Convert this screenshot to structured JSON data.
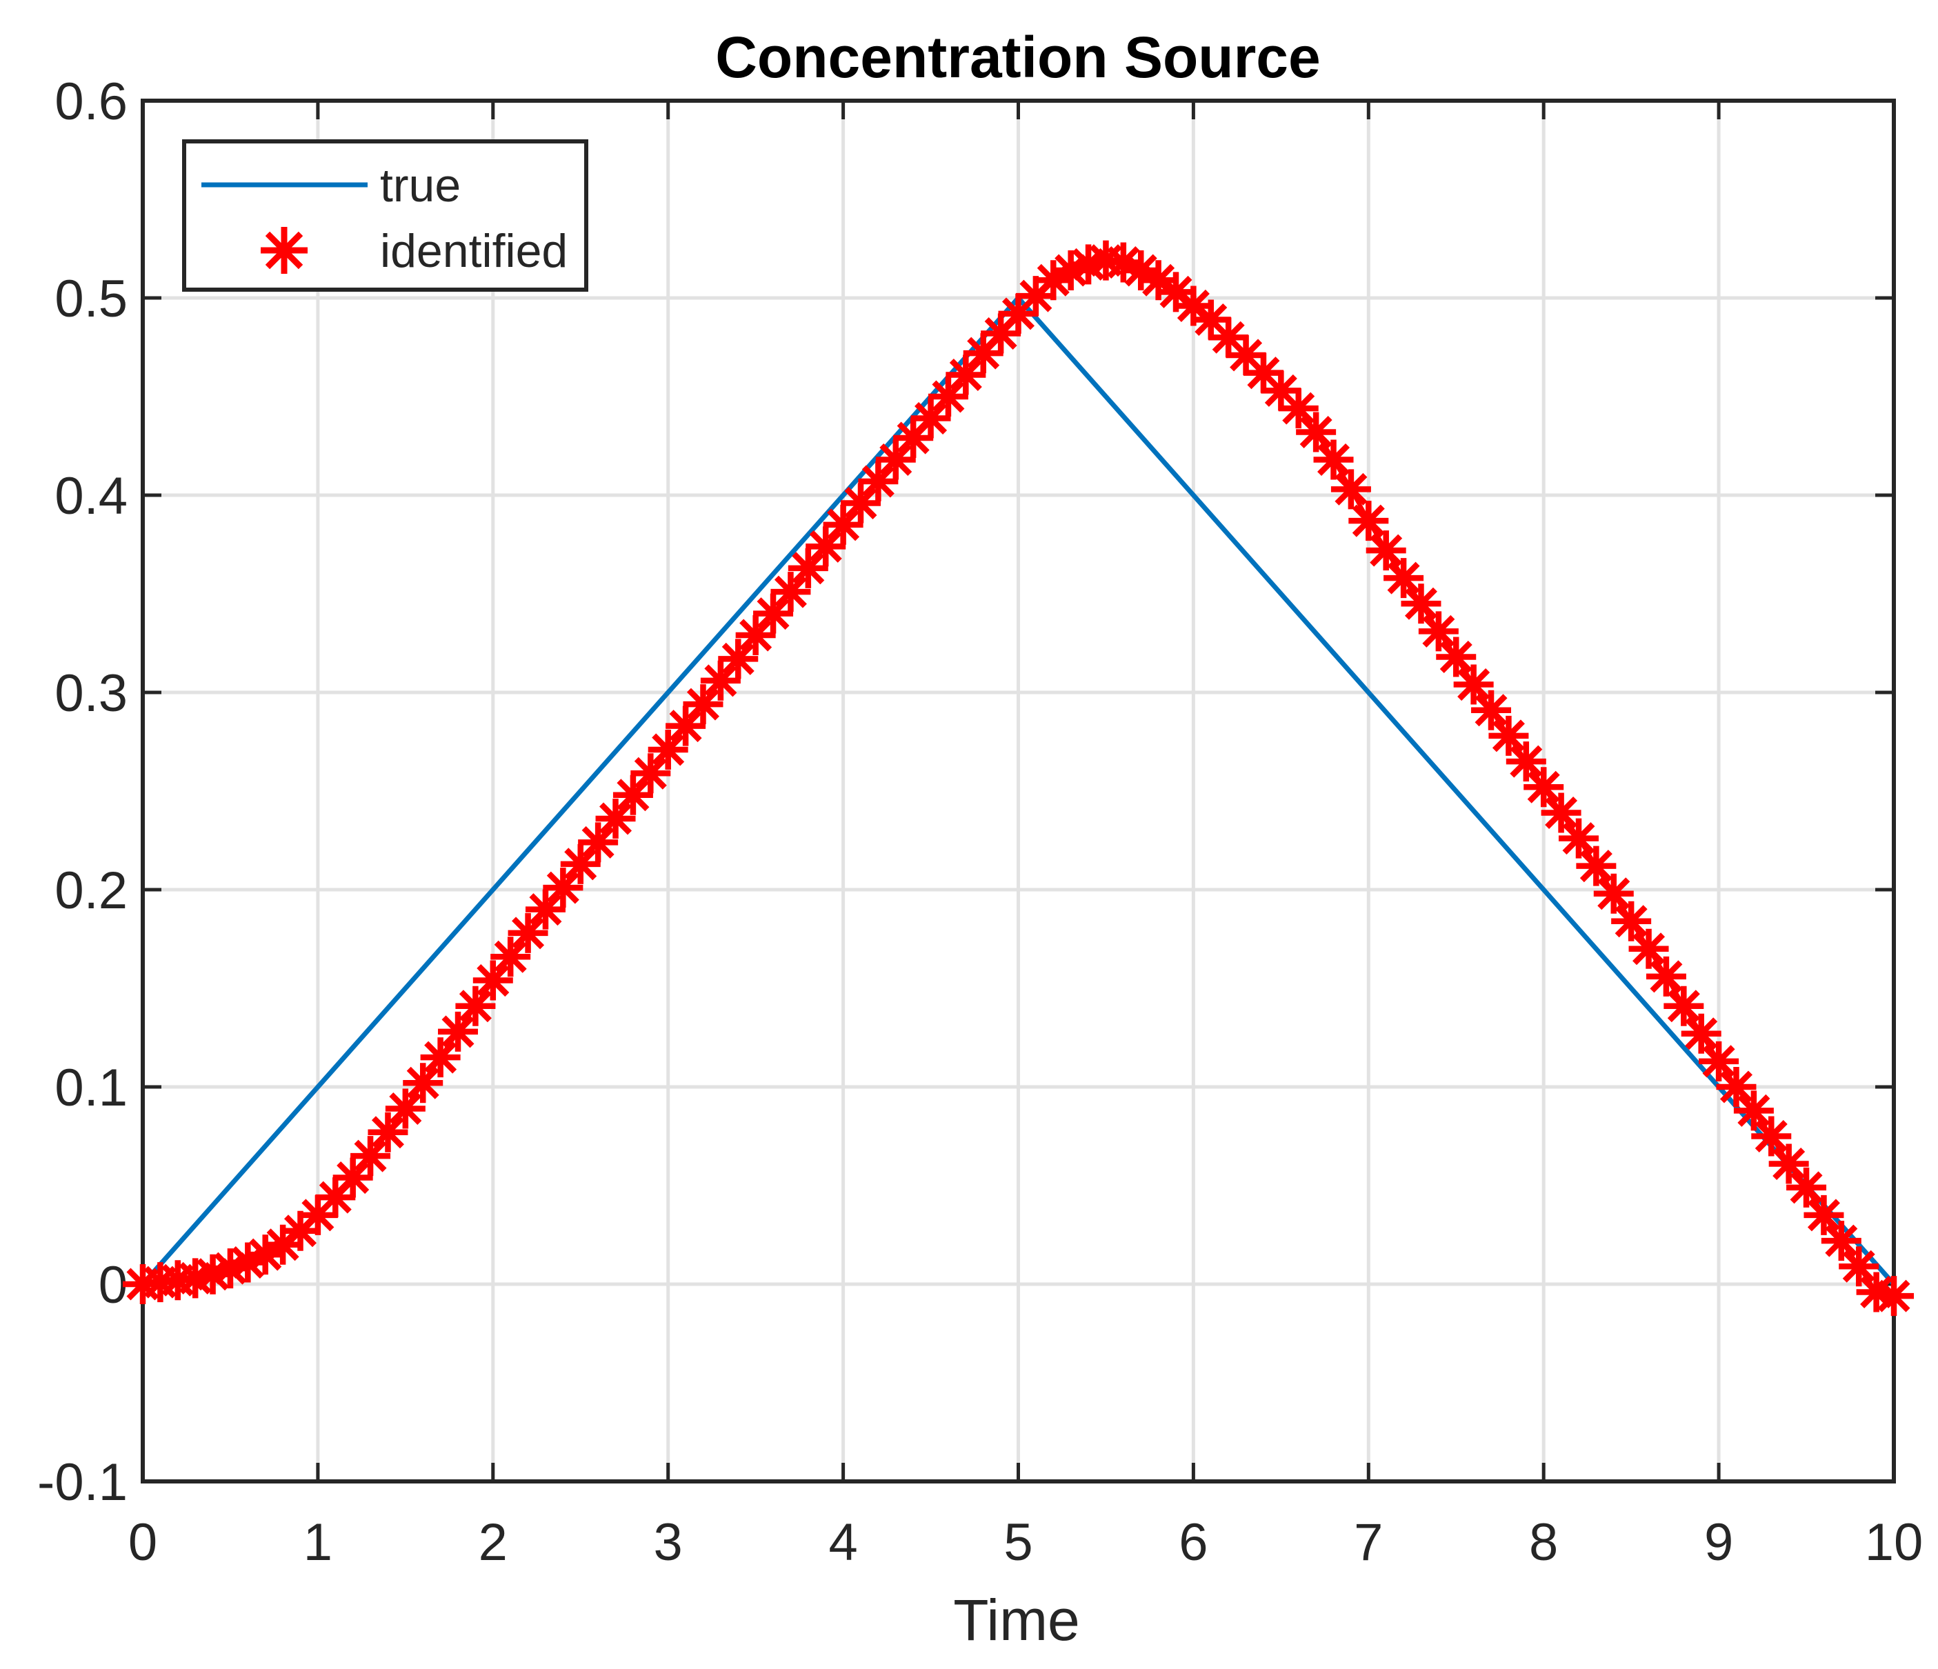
{
  "chart_data": {
    "type": "line",
    "title": "Concentration Source",
    "xlabel": "Time",
    "ylabel": "",
    "xlim": [
      0,
      10
    ],
    "ylim": [
      -0.1,
      0.6
    ],
    "grid": true,
    "legend_position": "top-left",
    "xticks": [
      0,
      1,
      2,
      3,
      4,
      5,
      6,
      7,
      8,
      9,
      10
    ],
    "xtick_labels": [
      "0",
      "1",
      "2",
      "3",
      "4",
      "5",
      "6",
      "7",
      "8",
      "9",
      "10"
    ],
    "yticks": [
      -0.1,
      0,
      0.1,
      0.2,
      0.3,
      0.4,
      0.5,
      0.6
    ],
    "ytick_labels": [
      "-0.1",
      "0",
      "0.1",
      "0.2",
      "0.3",
      "0.4",
      "0.5",
      "0.6"
    ],
    "colors": {
      "true_line": "#0072BD",
      "identified": "#FF0000",
      "axis": "#262626",
      "grid": "#E2E2E2",
      "background": "#FFFFFF"
    },
    "series": [
      {
        "name": "true",
        "style": "line",
        "color": "#0072BD",
        "x": [
          0,
          5,
          10
        ],
        "y": [
          0,
          0.5,
          0
        ]
      },
      {
        "name": "identified",
        "style": "line-asterisk-markers",
        "color": "#FF0000",
        "x": [
          0,
          0.1,
          0.2,
          0.3,
          0.4,
          0.5,
          0.6,
          0.7,
          0.8,
          0.9,
          1,
          1.1,
          1.2,
          1.3,
          1.4,
          1.5,
          1.6,
          1.7,
          1.8,
          1.9,
          2,
          2.1,
          2.2,
          2.3,
          2.4,
          2.5,
          2.6,
          2.7,
          2.8,
          2.9,
          3,
          3.1,
          3.2,
          3.3,
          3.4,
          3.5,
          3.6,
          3.7,
          3.8,
          3.9,
          4,
          4.1,
          4.2,
          4.3,
          4.4,
          4.5,
          4.6,
          4.7,
          4.8,
          4.9,
          5,
          5.1,
          5.2,
          5.3,
          5.4,
          5.5,
          5.6,
          5.7,
          5.8,
          5.9,
          6,
          6.1,
          6.2,
          6.3,
          6.4,
          6.5,
          6.6,
          6.7,
          6.8,
          6.9,
          7,
          7.1,
          7.2,
          7.3,
          7.4,
          7.5,
          7.6,
          7.7,
          7.8,
          7.9,
          8,
          8.1,
          8.2,
          8.3,
          8.4,
          8.5,
          8.6,
          8.7,
          8.8,
          8.9,
          9,
          9.1,
          9.2,
          9.3,
          9.4,
          9.5,
          9.6,
          9.7,
          9.8,
          9.9,
          10
        ],
        "y": [
          0,
          0.001,
          0.002,
          0.003,
          0.005,
          0.008,
          0.011,
          0.015,
          0.02,
          0.027,
          0.035,
          0.044,
          0.054,
          0.065,
          0.077,
          0.089,
          0.102,
          0.115,
          0.128,
          0.141,
          0.154,
          0.166,
          0.178,
          0.19,
          0.201,
          0.213,
          0.224,
          0.236,
          0.248,
          0.259,
          0.271,
          0.283,
          0.294,
          0.306,
          0.317,
          0.329,
          0.34,
          0.351,
          0.363,
          0.374,
          0.385,
          0.396,
          0.407,
          0.418,
          0.429,
          0.439,
          0.45,
          0.461,
          0.472,
          0.482,
          0.492,
          0.501,
          0.509,
          0.514,
          0.517,
          0.519,
          0.518,
          0.514,
          0.509,
          0.503,
          0.496,
          0.489,
          0.48,
          0.471,
          0.462,
          0.453,
          0.444,
          0.432,
          0.418,
          0.403,
          0.387,
          0.372,
          0.358,
          0.345,
          0.331,
          0.318,
          0.304,
          0.291,
          0.278,
          0.265,
          0.252,
          0.239,
          0.226,
          0.212,
          0.198,
          0.184,
          0.17,
          0.156,
          0.141,
          0.127,
          0.113,
          0.1,
          0.088,
          0.075,
          0.061,
          0.049,
          0.035,
          0.022,
          0.009,
          -0.004,
          -0.006
        ]
      }
    ],
    "legend": {
      "entries": [
        {
          "label": "true",
          "symbol": "line",
          "color": "#0072BD"
        },
        {
          "label": "identified",
          "symbol": "asterisk",
          "color": "#FF0000"
        }
      ]
    }
  }
}
